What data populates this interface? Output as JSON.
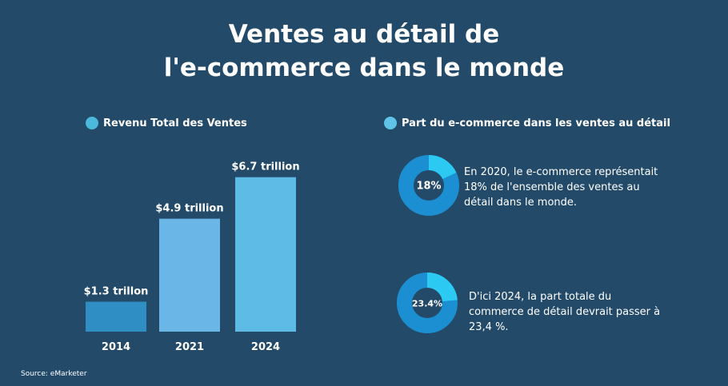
{
  "title_line1": "Ventes au détail de",
  "title_line2": "l'e-commerce dans le monde",
  "left_heading": "Revenu Total des Ventes",
  "right_heading": "Part du e-commerce dans les ventes au détail",
  "source": "Source: eMarketer",
  "colors": {
    "background": "#234b69",
    "bar_2014": "#2f8ec3",
    "bar_2021": "#6ab6e6",
    "bar_2024": "#5ebbe6",
    "donut_main": "#1b8fd1",
    "donut_share": "#2ccaf2"
  },
  "chart_data": [
    {
      "type": "bar",
      "title": "Revenu Total des Ventes",
      "categories": [
        "2014",
        "2021",
        "2024"
      ],
      "values": [
        1.3,
        4.9,
        6.7
      ],
      "data_labels": [
        "$1.3 trillon",
        "$4.9 trillion",
        "$6.7 trillion"
      ],
      "ylim": [
        0,
        7.8
      ],
      "grid": false
    },
    {
      "type": "pie",
      "title": "Part du e-commerce dans les ventes au détail",
      "donuts": [
        {
          "year": "2020",
          "share": 18,
          "label": "18%",
          "text": "En 2020, le e-commerce représentait 18% de l'ensemble des ventes au détail dans le monde."
        },
        {
          "year": "2024",
          "share": 23.4,
          "label": "23.4%",
          "text": "D'ici 2024, la part totale du commerce de détail devrait passer à 23,4 %."
        }
      ]
    }
  ]
}
